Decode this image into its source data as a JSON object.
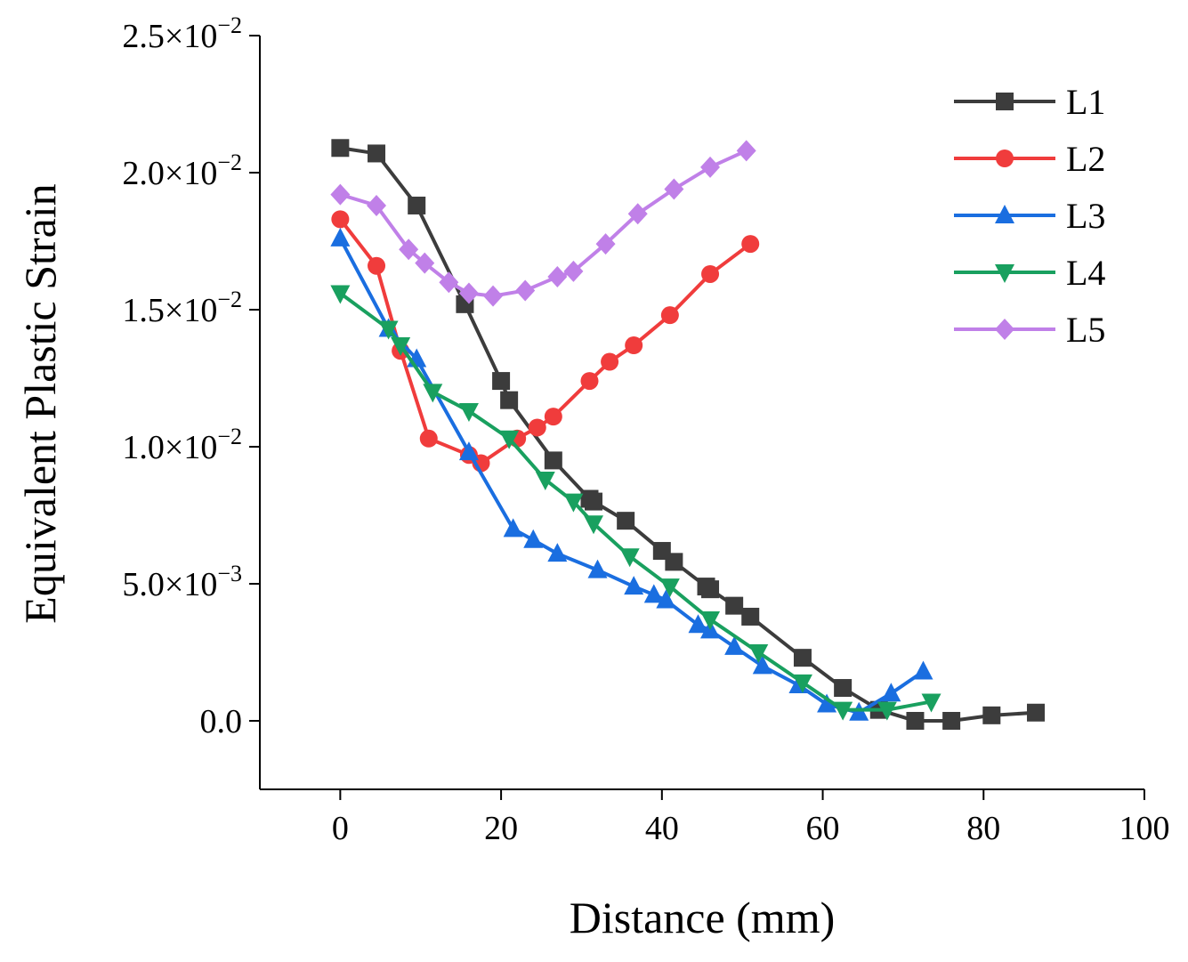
{
  "chart_data": {
    "type": "line",
    "title": "",
    "xlabel": "Distance (mm)",
    "ylabel": "Equivalent Plastic Strain",
    "xlim": [
      -10,
      100
    ],
    "ylim": [
      -0.0025,
      0.025
    ],
    "xticks": [
      0,
      20,
      40,
      60,
      80,
      100
    ],
    "xtick_labels": [
      "0",
      "20",
      "40",
      "60",
      "80",
      "100"
    ],
    "yticks": [
      0,
      0.005,
      0.01,
      0.015,
      0.02,
      0.025
    ],
    "ytick_labels": [
      {
        "mantissa": "0.0",
        "exp": ""
      },
      {
        "mantissa": "5.0×10",
        "exp": "−3"
      },
      {
        "mantissa": "1.0×10",
        "exp": "−2"
      },
      {
        "mantissa": "1.5×10",
        "exp": "−2"
      },
      {
        "mantissa": "2.0×10",
        "exp": "−2"
      },
      {
        "mantissa": "2.5×10",
        "exp": "−2"
      }
    ],
    "grid": false,
    "legend_position": "top-right",
    "series": [
      {
        "name": "L1",
        "color": "#3c3c3c",
        "marker": "square",
        "x": [
          0,
          4.5,
          9.5,
          15.5,
          20,
          21,
          26.5,
          31,
          31.5,
          35.5,
          40,
          41.5,
          45.5,
          46,
          49,
          51,
          57.5,
          62.5,
          67,
          71.5,
          76,
          81,
          86.5
        ],
        "y": [
          0.0209,
          0.0207,
          0.0188,
          0.0152,
          0.0124,
          0.0117,
          0.0095,
          0.0081,
          0.008,
          0.0073,
          0.0062,
          0.0058,
          0.0049,
          0.0048,
          0.0042,
          0.0038,
          0.0023,
          0.0012,
          0.0004,
          0.0,
          0.0,
          0.0002,
          0.0003
        ]
      },
      {
        "name": "L2",
        "color": "#f03c3c",
        "marker": "circle",
        "x": [
          0,
          4.5,
          7.5,
          11,
          16,
          17.5,
          22,
          24.5,
          26.5,
          31,
          33.5,
          36.5,
          41,
          46,
          51
        ],
        "y": [
          0.0183,
          0.0166,
          0.0135,
          0.0103,
          0.0097,
          0.0094,
          0.0103,
          0.0107,
          0.0111,
          0.0124,
          0.0131,
          0.0137,
          0.0148,
          0.0163,
          0.0174
        ]
      },
      {
        "name": "L3",
        "color": "#1a6ee0",
        "marker": "triangle-up",
        "x": [
          0,
          6,
          9.5,
          16,
          21.5,
          24,
          27,
          32,
          36.5,
          39,
          40.5,
          44.5,
          46,
          49,
          52.5,
          57,
          60.5,
          64.5,
          68.5,
          72.5
        ],
        "y": [
          0.0176,
          0.0143,
          0.0132,
          0.0098,
          0.007,
          0.0066,
          0.0061,
          0.0055,
          0.0049,
          0.0046,
          0.0044,
          0.0035,
          0.0033,
          0.0027,
          0.002,
          0.0013,
          0.0006,
          0.0003,
          0.001,
          0.0018
        ]
      },
      {
        "name": "L4",
        "color": "#19a05f",
        "marker": "triangle-down",
        "x": [
          0,
          6,
          7.5,
          11.5,
          16,
          21,
          25.5,
          29,
          31.5,
          36,
          41,
          46,
          52,
          57.5,
          62.5,
          68,
          73.5
        ],
        "y": [
          0.0156,
          0.0143,
          0.0137,
          0.012,
          0.0113,
          0.0103,
          0.0088,
          0.008,
          0.0072,
          0.006,
          0.0049,
          0.0037,
          0.0025,
          0.0014,
          0.0004,
          0.0004,
          0.0007
        ]
      },
      {
        "name": "L5",
        "color": "#c080e8",
        "marker": "diamond",
        "x": [
          0,
          4.5,
          8.5,
          10.5,
          13.5,
          16,
          19,
          23,
          27,
          29,
          33,
          37,
          41.5,
          46,
          50.5
        ],
        "y": [
          0.0192,
          0.0188,
          0.0172,
          0.0167,
          0.016,
          0.0156,
          0.0155,
          0.0157,
          0.0162,
          0.0164,
          0.0174,
          0.0185,
          0.0194,
          0.0202,
          0.0208
        ]
      }
    ]
  }
}
